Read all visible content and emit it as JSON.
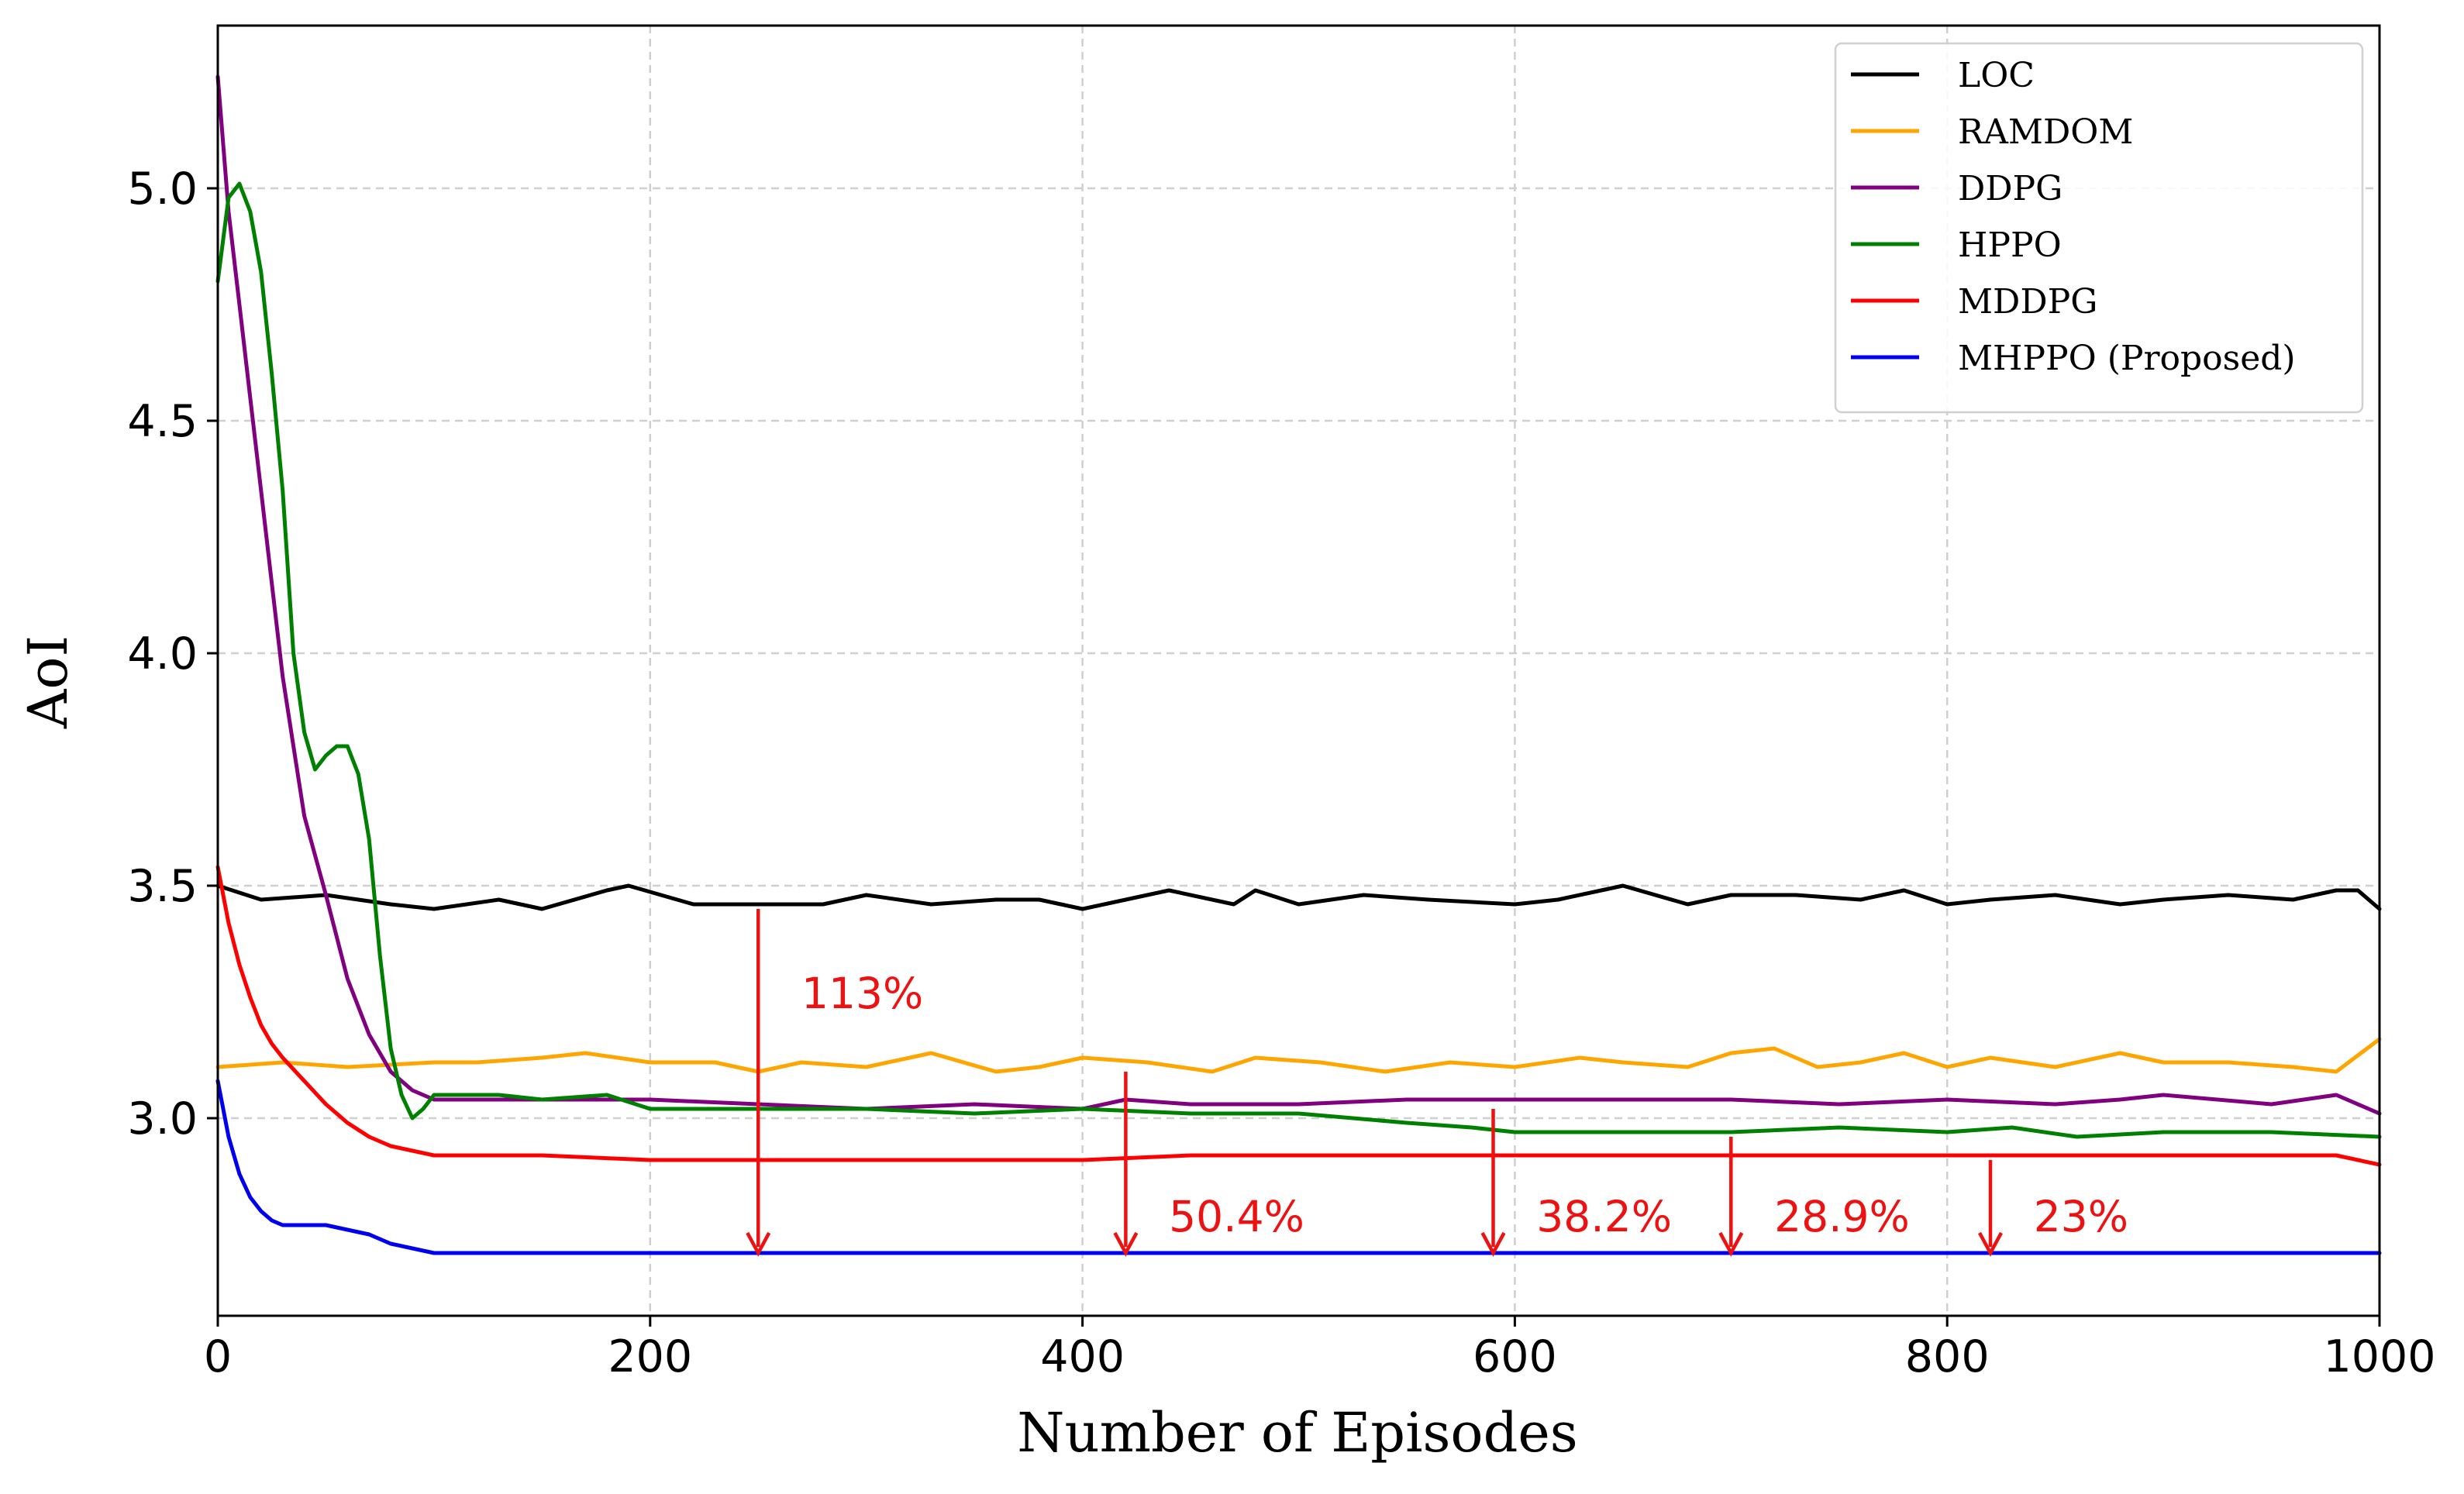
{
  "chart_data": {
    "type": "line",
    "title": "",
    "xlabel": "Number of Episodes",
    "ylabel": "AoI",
    "xlim": [
      0,
      1000
    ],
    "ylim": [
      2.575,
      5.35
    ],
    "xticks": [
      0,
      200,
      400,
      600,
      800,
      1000
    ],
    "xtick_labels": [
      "0",
      "200",
      "400",
      "600",
      "800",
      "1000"
    ],
    "yticks": [
      3.0,
      3.5,
      4.0,
      4.5,
      5.0
    ],
    "ytick_labels": [
      "3.0",
      "3.5",
      "4.0",
      "4.5",
      "5.0"
    ],
    "grid": true,
    "legend_position": "top-right",
    "series": [
      {
        "name": "LOC",
        "color": "#000000",
        "x": [
          0,
          20,
          50,
          80,
          100,
          130,
          150,
          180,
          190,
          220,
          250,
          280,
          300,
          330,
          360,
          380,
          400,
          420,
          440,
          470,
          480,
          500,
          530,
          560,
          600,
          620,
          640,
          650,
          680,
          700,
          730,
          760,
          780,
          800,
          820,
          850,
          880,
          900,
          930,
          960,
          980,
          990,
          1000
        ],
        "y": [
          3.5,
          3.47,
          3.48,
          3.46,
          3.45,
          3.47,
          3.45,
          3.49,
          3.5,
          3.46,
          3.46,
          3.46,
          3.48,
          3.46,
          3.47,
          3.47,
          3.45,
          3.47,
          3.49,
          3.46,
          3.49,
          3.46,
          3.48,
          3.47,
          3.46,
          3.47,
          3.49,
          3.5,
          3.46,
          3.48,
          3.48,
          3.47,
          3.49,
          3.46,
          3.47,
          3.48,
          3.46,
          3.47,
          3.48,
          3.47,
          3.49,
          3.49,
          3.45
        ]
      },
      {
        "name": "RAMDOM",
        "color": "#FFA500",
        "x": [
          0,
          30,
          60,
          100,
          120,
          150,
          170,
          200,
          230,
          250,
          270,
          300,
          330,
          360,
          380,
          400,
          430,
          460,
          480,
          510,
          540,
          570,
          600,
          630,
          650,
          680,
          700,
          720,
          740,
          760,
          780,
          800,
          820,
          850,
          880,
          900,
          930,
          960,
          980,
          1000
        ],
        "y": [
          3.11,
          3.12,
          3.11,
          3.12,
          3.12,
          3.13,
          3.14,
          3.12,
          3.12,
          3.1,
          3.12,
          3.11,
          3.14,
          3.1,
          3.11,
          3.13,
          3.12,
          3.1,
          3.13,
          3.12,
          3.1,
          3.12,
          3.11,
          3.13,
          3.12,
          3.11,
          3.14,
          3.15,
          3.11,
          3.12,
          3.14,
          3.11,
          3.13,
          3.11,
          3.14,
          3.12,
          3.12,
          3.11,
          3.1,
          3.17
        ]
      },
      {
        "name": "DDPG",
        "color": "#800080",
        "x": [
          0,
          5,
          10,
          15,
          20,
          25,
          30,
          35,
          40,
          50,
          60,
          70,
          80,
          90,
          100,
          110,
          130,
          160,
          200,
          250,
          300,
          350,
          400,
          420,
          450,
          500,
          550,
          600,
          650,
          700,
          750,
          800,
          850,
          880,
          900,
          950,
          980,
          1000
        ],
        "y": [
          5.24,
          4.95,
          4.75,
          4.55,
          4.35,
          4.15,
          3.95,
          3.8,
          3.65,
          3.48,
          3.3,
          3.18,
          3.1,
          3.06,
          3.04,
          3.04,
          3.04,
          3.04,
          3.04,
          3.03,
          3.02,
          3.03,
          3.02,
          3.04,
          3.03,
          3.03,
          3.04,
          3.04,
          3.04,
          3.04,
          3.03,
          3.04,
          3.03,
          3.04,
          3.05,
          3.03,
          3.05,
          3.01
        ]
      },
      {
        "name": "HPPO",
        "color": "#008000",
        "x": [
          0,
          5,
          10,
          15,
          20,
          25,
          30,
          35,
          40,
          45,
          50,
          55,
          60,
          65,
          70,
          75,
          80,
          85,
          90,
          95,
          100,
          110,
          130,
          150,
          180,
          200,
          250,
          300,
          350,
          400,
          450,
          500,
          550,
          580,
          600,
          650,
          700,
          750,
          800,
          830,
          860,
          900,
          950,
          1000
        ],
        "y": [
          4.8,
          4.98,
          5.01,
          4.95,
          4.82,
          4.6,
          4.35,
          4.0,
          3.83,
          3.75,
          3.78,
          3.8,
          3.8,
          3.74,
          3.6,
          3.35,
          3.15,
          3.05,
          3.0,
          3.02,
          3.05,
          3.05,
          3.05,
          3.04,
          3.05,
          3.02,
          3.02,
          3.02,
          3.01,
          3.02,
          3.01,
          3.01,
          2.99,
          2.98,
          2.97,
          2.97,
          2.97,
          2.98,
          2.97,
          2.98,
          2.96,
          2.97,
          2.97,
          2.96
        ]
      },
      {
        "name": "MDDPG",
        "color": "#FF0000",
        "x": [
          0,
          5,
          10,
          15,
          20,
          25,
          30,
          40,
          50,
          60,
          70,
          80,
          90,
          100,
          150,
          200,
          250,
          300,
          350,
          400,
          450,
          500,
          550,
          600,
          650,
          700,
          750,
          800,
          850,
          900,
          950,
          980,
          1000
        ],
        "y": [
          3.54,
          3.42,
          3.33,
          3.26,
          3.2,
          3.16,
          3.13,
          3.08,
          3.03,
          2.99,
          2.96,
          2.94,
          2.93,
          2.92,
          2.92,
          2.91,
          2.91,
          2.91,
          2.91,
          2.91,
          2.92,
          2.92,
          2.92,
          2.92,
          2.92,
          2.92,
          2.92,
          2.92,
          2.92,
          2.92,
          2.92,
          2.92,
          2.9
        ]
      },
      {
        "name": "MHPPO (Proposed)",
        "color": "#0000EE",
        "x": [
          0,
          5,
          10,
          15,
          20,
          25,
          30,
          35,
          40,
          50,
          60,
          70,
          80,
          90,
          100,
          120,
          150,
          200,
          250,
          300,
          400,
          500,
          600,
          700,
          800,
          900,
          1000
        ],
        "y": [
          3.08,
          2.96,
          2.88,
          2.83,
          2.8,
          2.78,
          2.77,
          2.77,
          2.77,
          2.77,
          2.76,
          2.75,
          2.73,
          2.72,
          2.71,
          2.71,
          2.71,
          2.71,
          2.71,
          2.71,
          2.71,
          2.71,
          2.71,
          2.71,
          2.71,
          2.71,
          2.71
        ]
      }
    ],
    "annotations": [
      {
        "label": "113%",
        "arrow_x": 250,
        "arrow_from": 3.45,
        "arrow_to": 2.71,
        "text_x": 270,
        "text_y": 3.27
      },
      {
        "label": "50.4%",
        "arrow_x": 420,
        "arrow_from": 3.1,
        "arrow_to": 2.71,
        "text_x": 440,
        "text_y": 2.79
      },
      {
        "label": "38.2%",
        "arrow_x": 590,
        "arrow_from": 3.02,
        "arrow_to": 2.71,
        "text_x": 610,
        "text_y": 2.79
      },
      {
        "label": "28.9%",
        "arrow_x": 700,
        "arrow_from": 2.96,
        "arrow_to": 2.71,
        "text_x": 720,
        "text_y": 2.79
      },
      {
        "label": "23%",
        "arrow_x": 820,
        "arrow_from": 2.91,
        "arrow_to": 2.71,
        "text_x": 840,
        "text_y": 2.79
      }
    ],
    "annotation_color": "#EE1111"
  }
}
